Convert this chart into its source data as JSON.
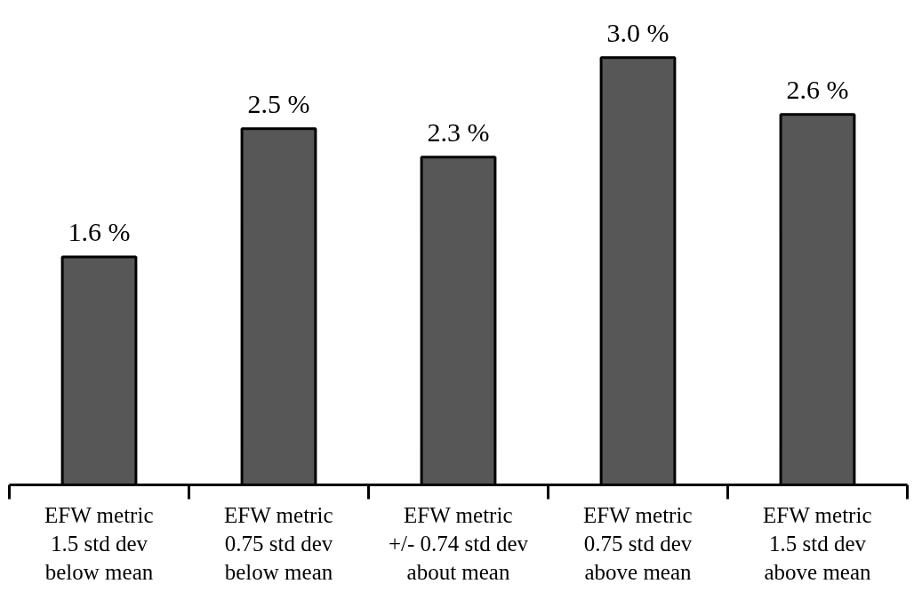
{
  "chart_data": {
    "type": "bar",
    "categories": [
      "EFW metric\n1.5 std dev\nbelow mean",
      "EFW metric\n0.75 std dev\nbelow mean",
      "EFW metric\n+/- 0.74 std dev\nabout mean",
      "EFW metric\n0.75 std dev\nabove mean",
      "EFW metric\n1.5 std dev\nabove mean"
    ],
    "values": [
      1.6,
      2.5,
      2.3,
      3.0,
      2.6
    ],
    "value_labels": [
      "1.6 %",
      "2.5 %",
      "2.3 %",
      "3.0 %",
      "2.6 %"
    ],
    "color": "#575757",
    "tick_labels": "x",
    "grid": false
  }
}
